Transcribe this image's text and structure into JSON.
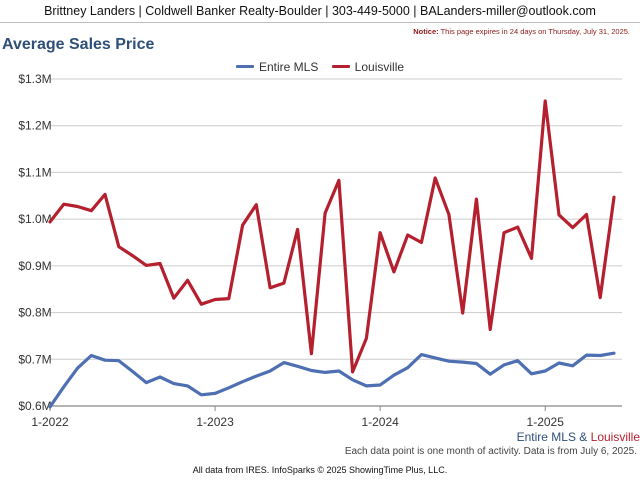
{
  "header": {
    "text": "Brittney Landers | Coldwell Banker Realty-Boulder | 303-449-5000 | BALanders-miller@outlook.com"
  },
  "notice": {
    "label": "Notice:",
    "text": "This page expires in 24 days on Thursday, July 31, 2025."
  },
  "footer": {
    "caption": "Each data point is one month of activity. Data is from July 6, 2025.",
    "attribution": "All data from IRES. InfoSparks © 2025 ShowingTime Plus, LLC.",
    "series_note_a": "Entire MLS",
    "series_note_amp": " & ",
    "series_note_b": "Louisville"
  },
  "colors": {
    "entire_mls": "#4e6fb1",
    "louisville": "#b5202e",
    "title": "#2d4f78"
  },
  "chart_data": {
    "type": "line",
    "title": "Average Sales Price",
    "xlabel": "",
    "ylabel": "",
    "grid": true,
    "legend_position": "top-center",
    "ylim": [
      0.6,
      1.3
    ],
    "yticks": [
      "$0.6M",
      "$0.7M",
      "$0.8M",
      "$0.9M",
      "$1.0M",
      "$1.1M",
      "$1.2M",
      "$1.3M"
    ],
    "xticks": [
      "1-2022",
      "1-2023",
      "1-2024",
      "1-2025"
    ],
    "x": [
      "2022-01",
      "2022-02",
      "2022-03",
      "2022-04",
      "2022-05",
      "2022-06",
      "2022-07",
      "2022-08",
      "2022-09",
      "2022-10",
      "2022-11",
      "2022-12",
      "2023-01",
      "2023-02",
      "2023-03",
      "2023-04",
      "2023-05",
      "2023-06",
      "2023-07",
      "2023-08",
      "2023-09",
      "2023-10",
      "2023-11",
      "2023-12",
      "2024-01",
      "2024-02",
      "2024-03",
      "2024-04",
      "2024-05",
      "2024-06",
      "2024-07",
      "2024-08",
      "2024-09",
      "2024-10",
      "2024-11",
      "2024-12",
      "2025-01",
      "2025-02",
      "2025-03",
      "2025-04",
      "2025-05",
      "2025-06"
    ],
    "series": [
      {
        "name": "Entire MLS",
        "color": "#4e6fb1",
        "values": [
          0.598,
          0.641,
          0.681,
          0.708,
          0.698,
          0.697,
          0.674,
          0.65,
          0.662,
          0.648,
          0.643,
          0.624,
          0.627,
          0.639,
          0.652,
          0.664,
          0.675,
          0.693,
          0.685,
          0.676,
          0.672,
          0.675,
          0.656,
          0.643,
          0.645,
          0.666,
          0.682,
          0.71,
          0.703,
          0.696,
          0.694,
          0.691,
          0.668,
          0.688,
          0.697,
          0.669,
          0.675,
          0.692,
          0.686,
          0.709,
          0.708,
          0.713
        ]
      },
      {
        "name": "Louisville",
        "color": "#b5202e",
        "values": [
          0.994,
          1.032,
          1.027,
          1.018,
          1.053,
          0.941,
          0.922,
          0.901,
          0.905,
          0.831,
          0.869,
          0.818,
          0.828,
          0.83,
          0.987,
          1.031,
          0.853,
          0.863,
          0.978,
          0.712,
          1.013,
          1.083,
          0.673,
          0.745,
          0.971,
          0.887,
          0.966,
          0.95,
          1.088,
          1.01,
          0.799,
          1.043,
          0.764,
          0.971,
          0.983,
          0.916,
          1.253,
          1.009,
          0.982,
          1.01,
          0.832,
          1.047
        ]
      }
    ]
  }
}
